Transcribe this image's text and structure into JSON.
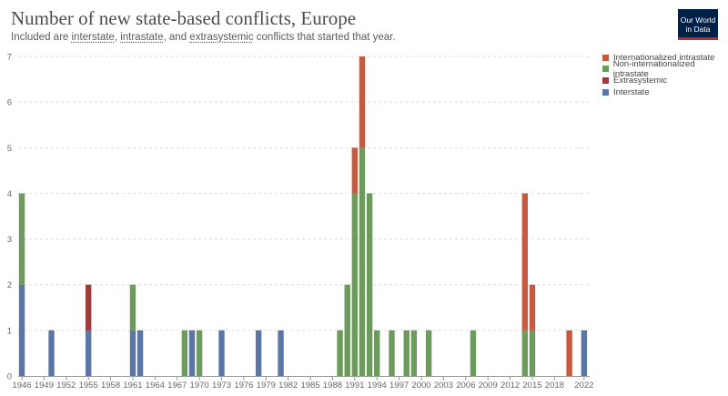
{
  "header": {
    "title": "Number of new state-based conflicts, Europe",
    "subtitle_parts": [
      "Included are ",
      "interstate",
      ", ",
      "intrastate",
      ", and ",
      "extrasystemic",
      " conflicts that started that year."
    ],
    "logo_line1": "Our World",
    "logo_line2": "in Data"
  },
  "colors": {
    "Internationalized intrastate": "#c65a3e",
    "Non-internationalized intrastate": "#6d9a5d",
    "Extrasystemic": "#a2393b",
    "Interstate": "#5b76a6"
  },
  "chart_data": {
    "type": "bar",
    "stacked": true,
    "title": "Number of new state-based conflicts, Europe",
    "xlim": [
      1946,
      2022
    ],
    "ylim": [
      0,
      7
    ],
    "yticks": [
      0,
      1,
      2,
      3,
      4,
      5,
      6,
      7
    ],
    "xticks": [
      1946,
      1949,
      1952,
      1955,
      1958,
      1961,
      1964,
      1967,
      1970,
      1973,
      1976,
      1979,
      1982,
      1985,
      1988,
      1991,
      1994,
      1997,
      2000,
      2003,
      2006,
      2009,
      2012,
      2015,
      2018,
      2022
    ],
    "grid": true,
    "legend_position": "right",
    "series": [
      {
        "name": "Interstate",
        "points": [
          [
            1946,
            2
          ],
          [
            1950,
            1
          ],
          [
            1955,
            1
          ],
          [
            1961,
            1
          ],
          [
            1962,
            1
          ],
          [
            1969,
            1
          ],
          [
            1973,
            1
          ],
          [
            1978,
            1
          ],
          [
            1981,
            1
          ],
          [
            2022,
            1
          ]
        ]
      },
      {
        "name": "Extrasystemic",
        "points": [
          [
            1955,
            1
          ]
        ]
      },
      {
        "name": "Non-internationalized intrastate",
        "points": [
          [
            1946,
            2
          ],
          [
            1961,
            1
          ],
          [
            1968,
            1
          ],
          [
            1970,
            1
          ],
          [
            1989,
            1
          ],
          [
            1990,
            2
          ],
          [
            1991,
            4
          ],
          [
            1992,
            5
          ],
          [
            1993,
            4
          ],
          [
            1994,
            1
          ],
          [
            1996,
            1
          ],
          [
            1998,
            1
          ],
          [
            1999,
            1
          ],
          [
            2001,
            1
          ],
          [
            2007,
            1
          ],
          [
            2014,
            1
          ],
          [
            2015,
            1
          ]
        ]
      },
      {
        "name": "Internationalized intrastate",
        "points": [
          [
            1991,
            1
          ],
          [
            1992,
            2
          ],
          [
            2014,
            3
          ],
          [
            2015,
            1
          ],
          [
            2020,
            1
          ]
        ]
      }
    ],
    "legend_order": [
      "Internationalized intrastate",
      "Non-internationalized intrastate",
      "Extrasystemic",
      "Interstate"
    ]
  }
}
